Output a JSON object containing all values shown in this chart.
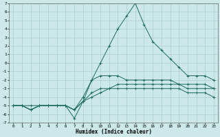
{
  "xlabel": "Humidex (Indice chaleur)",
  "background_color": "#cce8e8",
  "grid_color": "#aacece",
  "line_color": "#1a6b5a",
  "xlim": [
    -0.5,
    23.5
  ],
  "ylim": [
    -7,
    7
  ],
  "xticks": [
    0,
    1,
    2,
    3,
    4,
    5,
    6,
    7,
    8,
    9,
    10,
    11,
    12,
    13,
    14,
    15,
    16,
    17,
    18,
    19,
    20,
    21,
    22,
    23
  ],
  "yticks": [
    -7,
    -6,
    -5,
    -4,
    -3,
    -2,
    -1,
    0,
    1,
    2,
    3,
    4,
    5,
    6,
    7
  ],
  "series": [
    {
      "x": [
        0,
        1,
        2,
        3,
        4,
        5,
        6,
        7,
        8,
        9,
        10,
        11,
        12,
        13,
        14,
        15,
        16,
        17,
        18,
        19,
        20,
        21,
        22,
        23
      ],
      "y": [
        -5,
        -5,
        -5,
        -5,
        -5,
        -5,
        -5,
        -6.5,
        -4.5,
        -2,
        0,
        2,
        4,
        5.5,
        7,
        4.5,
        2.5,
        1.5,
        0.5,
        -0.5,
        -1.5,
        -1.5,
        -1.5,
        -2
      ]
    },
    {
      "x": [
        0,
        1,
        2,
        3,
        4,
        5,
        6,
        7,
        8,
        9,
        10,
        11,
        12,
        13,
        14,
        15,
        16,
        17,
        18,
        19,
        20,
        21,
        22,
        23
      ],
      "y": [
        -5,
        -5,
        -5.5,
        -5,
        -5,
        -5,
        -5,
        -5.5,
        -4,
        -2,
        -1.5,
        -1.5,
        -1.5,
        -2,
        -2,
        -2,
        -2,
        -2,
        -2,
        -2.5,
        -3,
        -3,
        -3,
        -3
      ]
    },
    {
      "x": [
        0,
        1,
        2,
        3,
        4,
        5,
        6,
        7,
        8,
        9,
        10,
        11,
        12,
        13,
        14,
        15,
        16,
        17,
        18,
        19,
        20,
        21,
        22,
        23
      ],
      "y": [
        -5,
        -5,
        -5.5,
        -5,
        -5,
        -5,
        -5,
        -5.5,
        -4.5,
        -3.5,
        -3,
        -3,
        -3,
        -3,
        -3,
        -3,
        -3,
        -3,
        -3,
        -3,
        -3.5,
        -3.5,
        -3.5,
        -4
      ]
    },
    {
      "x": [
        0,
        1,
        2,
        3,
        4,
        5,
        6,
        7,
        8,
        9,
        10,
        11,
        12,
        13,
        14,
        15,
        16,
        17,
        18,
        19,
        20,
        21,
        22,
        23
      ],
      "y": [
        -5,
        -5,
        -5.5,
        -5,
        -5,
        -5,
        -5,
        -5.5,
        -4.5,
        -4,
        -3.5,
        -3,
        -2.5,
        -2.5,
        -2.5,
        -2.5,
        -2.5,
        -2.5,
        -2.5,
        -2.5,
        -2.5,
        -2.5,
        -2.5,
        -3
      ]
    }
  ]
}
